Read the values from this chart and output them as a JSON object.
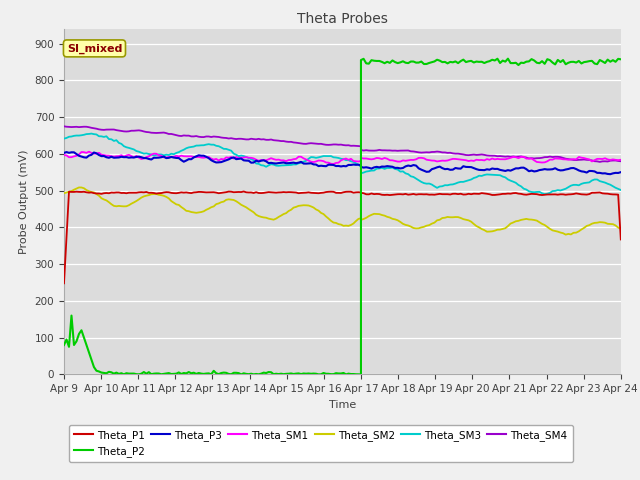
{
  "title": "Theta Probes",
  "xlabel": "Time",
  "ylabel": "Probe Output (mV)",
  "ylim": [
    0,
    940
  ],
  "yticks": [
    0,
    100,
    200,
    300,
    400,
    500,
    600,
    700,
    800,
    900
  ],
  "x_labels": [
    "Apr 9",
    "Apr 10",
    "Apr 11",
    "Apr 12",
    "Apr 13",
    "Apr 14",
    "Apr 15",
    "Apr 16",
    "Apr 17",
    "Apr 18",
    "Apr 19",
    "Apr 20",
    "Apr 21",
    "Apr 22",
    "Apr 23",
    "Apr 24"
  ],
  "annotation_label": "SI_mixed",
  "colors": {
    "Theta_P1": "#cc0000",
    "Theta_P2": "#00cc00",
    "Theta_P3": "#0000cc",
    "Theta_SM1": "#ff00ff",
    "Theta_SM2": "#cccc00",
    "Theta_SM3": "#00cccc",
    "Theta_SM4": "#9900cc"
  },
  "background_color": "#dcdcdc",
  "fig_bg": "#f0f0f0",
  "grid_color": "#ffffff",
  "transition_day": 8.0,
  "n_pts_early": 120,
  "n_pts_late": 100
}
